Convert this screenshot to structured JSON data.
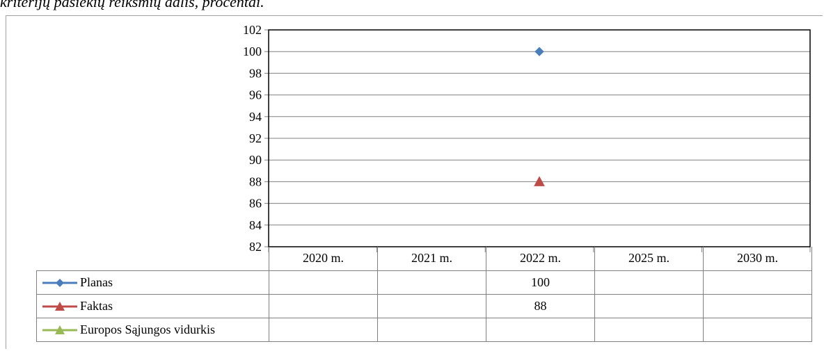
{
  "caption": "kriterijų pasiekių reikšmių dalis, procentai.",
  "chart_data": {
    "type": "line",
    "categories": [
      "2020 m.",
      "2021 m.",
      "2022 m.",
      "2025 m.",
      "2030 m."
    ],
    "series": [
      {
        "name": "Planas",
        "values": [
          null,
          null,
          100,
          null,
          null
        ],
        "color": "#4a7ebb",
        "marker": "diamond"
      },
      {
        "name": "Faktas",
        "values": [
          null,
          null,
          88,
          null,
          null
        ],
        "color": "#be4b48",
        "marker": "triangle"
      },
      {
        "name": "Europos Sąjungos vidurkis",
        "values": [
          null,
          null,
          null,
          null,
          null
        ],
        "color": "#98b954",
        "marker": "triangle"
      }
    ],
    "ylim": [
      82,
      102
    ],
    "yticks": [
      82,
      84,
      86,
      88,
      90,
      92,
      94,
      96,
      98,
      100,
      102
    ],
    "grid": true,
    "legend": "data-table"
  }
}
